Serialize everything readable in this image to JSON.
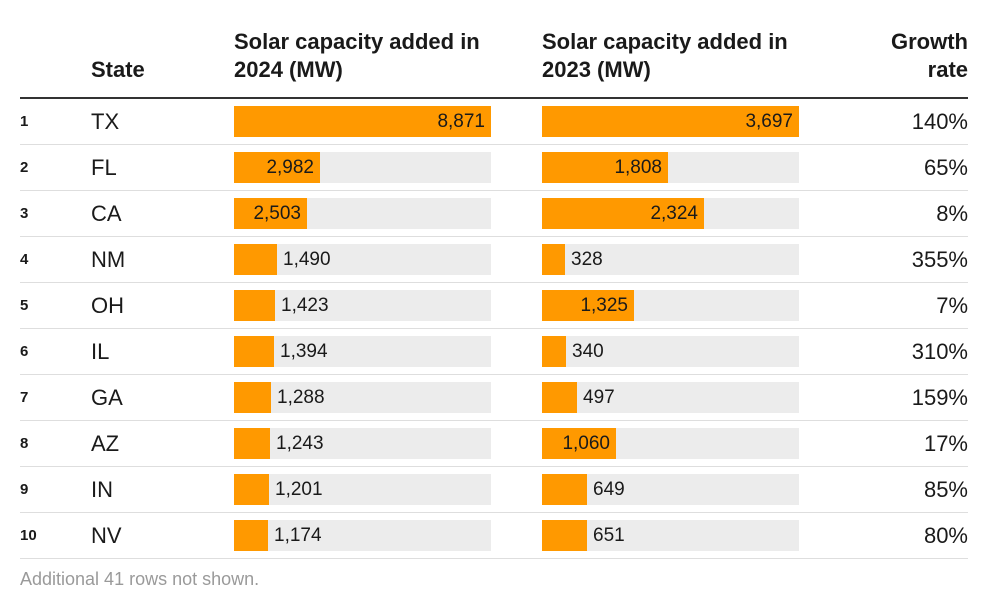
{
  "chart_data": {
    "type": "table",
    "columns": [
      "",
      "State",
      "Solar capacity added in 2024 (MW)",
      "Solar capacity added in 2023 (MW)",
      "Growth rate"
    ],
    "headers": {
      "state": "State",
      "cap2024": "Solar capacity added in 2024 (MW)",
      "cap2023": "Solar capacity added in 2023 (MW)",
      "growth": "Growth rate"
    },
    "bar_color": "#ff9900",
    "track_color": "#ececec",
    "rows": [
      {
        "rank": "1",
        "state": "TX",
        "cap2024": 8871,
        "cap2023": 3697,
        "growth": "140%"
      },
      {
        "rank": "2",
        "state": "FL",
        "cap2024": 2982,
        "cap2023": 1808,
        "growth": "65%"
      },
      {
        "rank": "3",
        "state": "CA",
        "cap2024": 2503,
        "cap2023": 2324,
        "growth": "8%"
      },
      {
        "rank": "4",
        "state": "NM",
        "cap2024": 1490,
        "cap2023": 328,
        "growth": "355%"
      },
      {
        "rank": "5",
        "state": "OH",
        "cap2024": 1423,
        "cap2023": 1325,
        "growth": "7%"
      },
      {
        "rank": "6",
        "state": "IL",
        "cap2024": 1394,
        "cap2023": 340,
        "growth": "310%"
      },
      {
        "rank": "7",
        "state": "GA",
        "cap2024": 1288,
        "cap2023": 497,
        "growth": "159%"
      },
      {
        "rank": "8",
        "state": "AZ",
        "cap2024": 1243,
        "cap2023": 1060,
        "growth": "17%"
      },
      {
        "rank": "9",
        "state": "IN",
        "cap2024": 1201,
        "cap2023": 649,
        "growth": "85%"
      },
      {
        "rank": "10",
        "state": "NV",
        "cap2024": 1174,
        "cap2023": 651,
        "growth": "80%"
      }
    ],
    "footnote": "Additional 41 rows not shown."
  }
}
